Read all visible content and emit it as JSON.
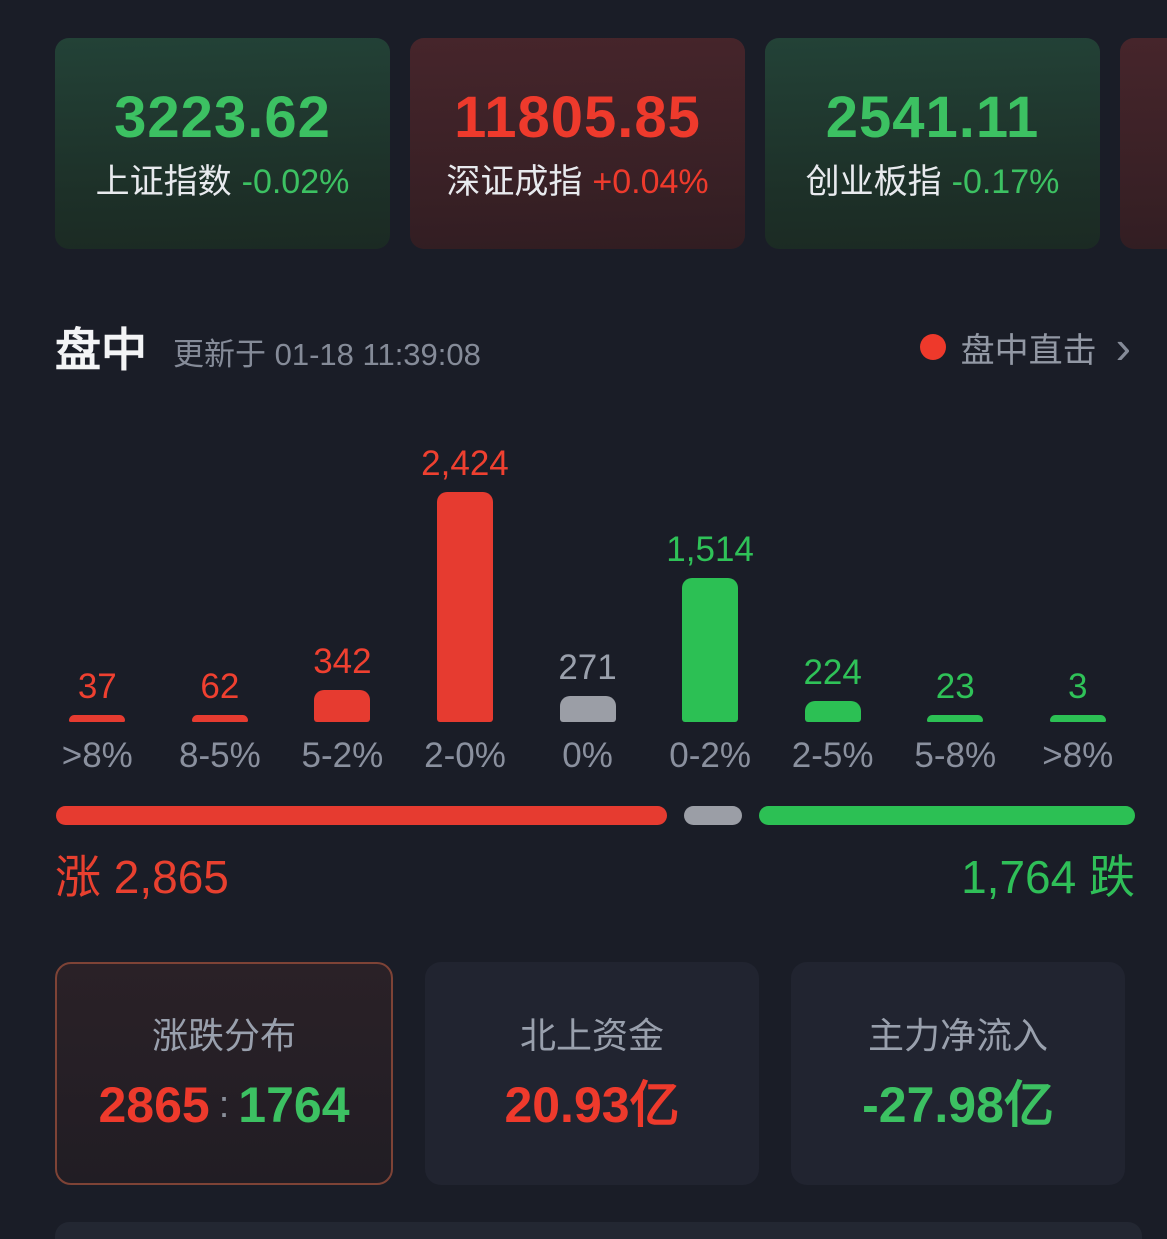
{
  "indices": [
    {
      "name": "上证指数",
      "value": "3223.62",
      "change": "-0.02%",
      "direction": "down"
    },
    {
      "name": "深证成指",
      "value": "11805.85",
      "change": "+0.04%",
      "direction": "up"
    },
    {
      "name": "创业板指",
      "value": "2541.11",
      "change": "-0.17%",
      "direction": "down"
    }
  ],
  "section": {
    "title": "盘中",
    "updated": "更新于 01-18 11:39:08",
    "live_label": "盘中直击",
    "chevron": "›"
  },
  "chart_data": {
    "type": "bar",
    "title": "涨跌分布",
    "categories": [
      ">8%",
      "8-5%",
      "5-2%",
      "2-0%",
      "0%",
      "0-2%",
      "2-5%",
      "5-8%",
      ">8%"
    ],
    "values": [
      37,
      62,
      342,
      2424,
      271,
      1514,
      224,
      23,
      3
    ],
    "value_labels": [
      "37",
      "62",
      "342",
      "2,424",
      "271",
      "1,514",
      "224",
      "23",
      "3"
    ],
    "series_colors": [
      "up",
      "up",
      "up",
      "up",
      "flat",
      "down",
      "down",
      "down",
      "down"
    ],
    "ylim": [
      0,
      2424
    ],
    "xlabel": "",
    "ylabel": "",
    "grid": false,
    "legend": false
  },
  "ratio": {
    "up_label": "涨",
    "up_value": "2,865",
    "down_value": "1,764",
    "down_label": "跌",
    "up_count": 2865,
    "flat_count": 271,
    "down_count": 1764
  },
  "summary_cards": [
    {
      "title": "涨跌分布",
      "value_up": "2865",
      "separator": ":",
      "value_down": "1764"
    },
    {
      "title": "北上资金",
      "value": "20.93亿"
    },
    {
      "title": "主力净流入",
      "value": "-27.98亿"
    }
  ],
  "colors": {
    "up_red": "#ee3a2c",
    "down_green": "#2fc258",
    "flat_gray": "#9b9ea6",
    "background": "#1a1d27"
  }
}
